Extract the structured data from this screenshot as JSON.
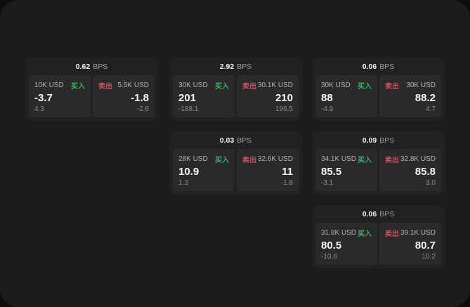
{
  "labels": {
    "bps": "BPS",
    "buy": "买入",
    "sell": "卖出"
  },
  "colors": {
    "background_outer": "#0d0d0d",
    "background_page": "#1c1c1c",
    "card": "#212121",
    "panel": "#2a2a2a",
    "buy_green": "#3fae68",
    "sell_red": "#cf4f63",
    "text_primary": "#f5f5f5",
    "text_secondary": "#b3b3b3",
    "text_muted": "#8c8c8c"
  },
  "cards": [
    {
      "bps": "0.62",
      "buy": {
        "size": "10K USD",
        "value": "-3.7",
        "sub": "4.3"
      },
      "sell": {
        "size": "5.5K USD",
        "value": "-1.8",
        "sub": "-2.6"
      }
    },
    {
      "bps": "2.92",
      "buy": {
        "size": "30K USD",
        "value": "201",
        "sub": "-188.1"
      },
      "sell": {
        "size": "30.1K USD",
        "value": "210",
        "sub": "196.5"
      }
    },
    {
      "bps": "0.06",
      "buy": {
        "size": "30K USD",
        "value": "88",
        "sub": "-4.9"
      },
      "sell": {
        "size": "30K USD",
        "value": "88.2",
        "sub": "4.7"
      }
    },
    {
      "bps": "0.03",
      "buy": {
        "size": "28K USD",
        "value": "10.9",
        "sub": "1.3"
      },
      "sell": {
        "size": "32.6K USD",
        "value": "11",
        "sub": "-1.8"
      }
    },
    {
      "bps": "0.09",
      "buy": {
        "size": "34.1K USD",
        "value": "85.5",
        "sub": "-3.1"
      },
      "sell": {
        "size": "32.8K USD",
        "value": "85.8",
        "sub": "3.0"
      }
    },
    {
      "bps": "0.06",
      "buy": {
        "size": "31.8K USD",
        "value": "80.5",
        "sub": "-10.8"
      },
      "sell": {
        "size": "39.1K USD",
        "value": "80.7",
        "sub": "10.2"
      }
    }
  ]
}
